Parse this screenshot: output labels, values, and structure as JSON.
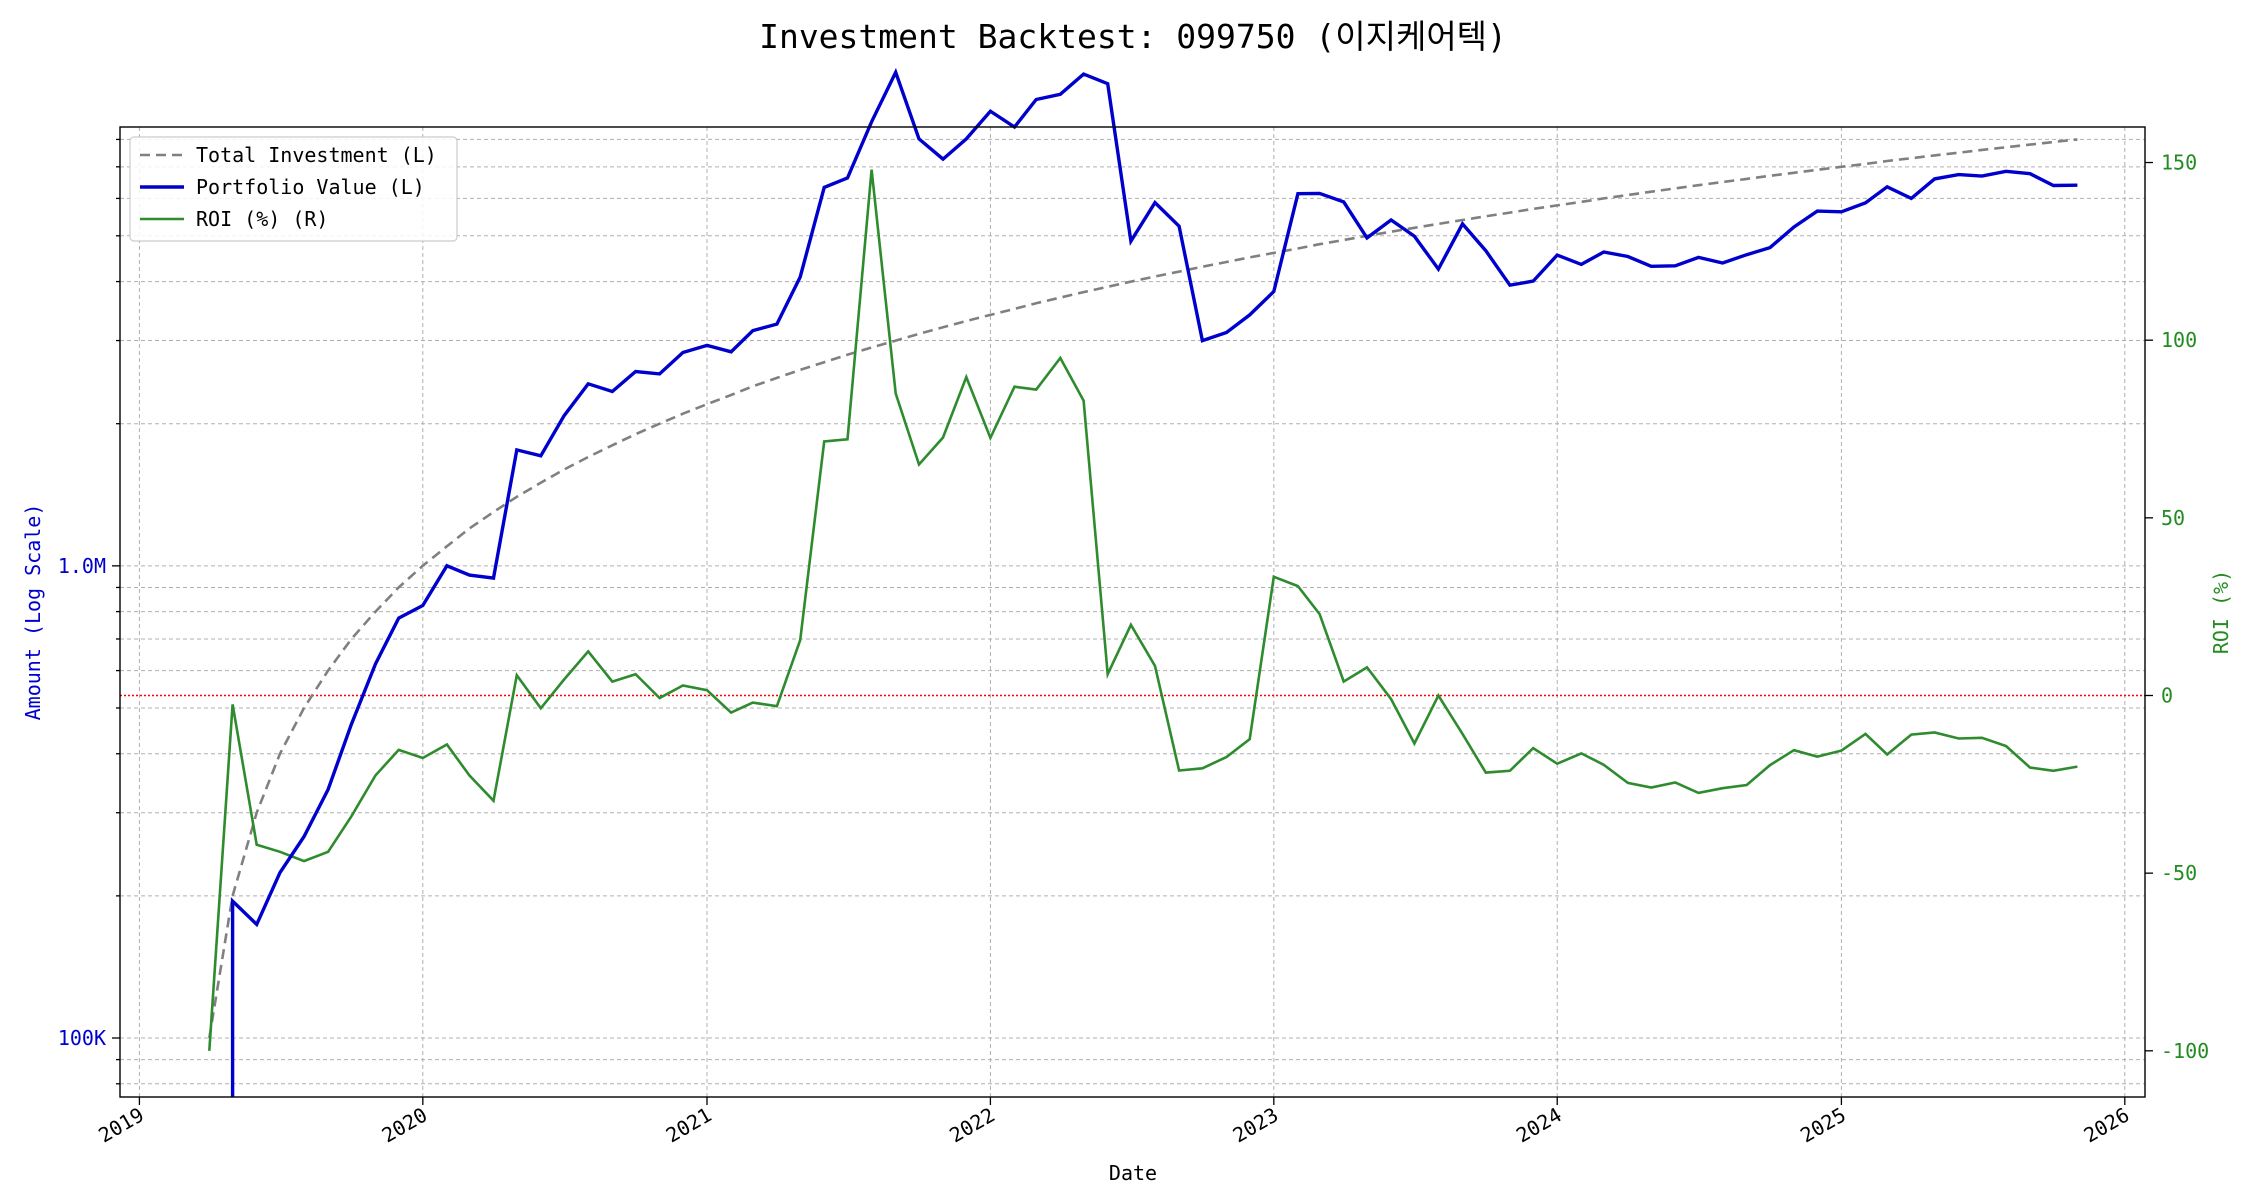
{
  "chart_data": {
    "type": "line",
    "title": "Investment Backtest: 099750 (이지케어텍)",
    "xlabel": "Date",
    "ylabel_left": "Amount (Log Scale)",
    "ylabel_right": "ROI (%)",
    "left_scale": "log",
    "left_ylim": [
      75000,
      8500000
    ],
    "right_ylim": [
      -113,
      160
    ],
    "xlim": [
      "2018-12-07",
      "2026-01-27"
    ],
    "grid": true,
    "legend_position": "upper-left",
    "zero_reference_line": {
      "axis": "right",
      "value": 0,
      "color": "#ff0000"
    },
    "x_tick_labels": [
      "2019",
      "2020",
      "2021",
      "2022",
      "2023",
      "2024",
      "2025",
      "2026"
    ],
    "x_tick_dates": [
      "2019-01-01",
      "2020-01-01",
      "2021-01-01",
      "2022-01-01",
      "2023-01-01",
      "2024-01-01",
      "2025-01-01",
      "2026-01-01"
    ],
    "left_tick_labels": [
      {
        "value": 100000,
        "label": "100K"
      },
      {
        "value": 1000000,
        "label": "1.0M"
      }
    ],
    "right_tick_labels": [
      {
        "value": 150,
        "label": "150"
      },
      {
        "value": 100,
        "label": "100"
      },
      {
        "value": 50,
        "label": "50"
      },
      {
        "value": 0,
        "label": "0"
      },
      {
        "value": -50,
        "label": "-50"
      },
      {
        "value": -100,
        "label": "-100"
      }
    ],
    "colors": {
      "total_investment": "#808080",
      "portfolio_value": "#0000cd",
      "roi": "#2e8b2e",
      "left_axis": "#0000cd",
      "right_axis": "#228b22",
      "zero_line": "#ff0000"
    },
    "x": [
      "2019-04-01",
      "2019-05-01",
      "2019-06-01",
      "2019-07-01",
      "2019-08-01",
      "2019-09-01",
      "2019-10-01",
      "2019-11-01",
      "2019-12-01",
      "2020-01-01",
      "2020-02-01",
      "2020-03-01",
      "2020-04-01",
      "2020-05-01",
      "2020-06-01",
      "2020-07-01",
      "2020-08-01",
      "2020-09-01",
      "2020-10-01",
      "2020-11-01",
      "2020-12-01",
      "2021-01-01",
      "2021-02-01",
      "2021-03-01",
      "2021-04-01",
      "2021-05-01",
      "2021-06-01",
      "2021-07-01",
      "2021-08-01",
      "2021-09-01",
      "2021-10-01",
      "2021-11-01",
      "2021-12-01",
      "2022-01-01",
      "2022-02-01",
      "2022-03-01",
      "2022-04-01",
      "2022-05-01",
      "2022-06-01",
      "2022-07-01",
      "2022-08-01",
      "2022-09-01",
      "2022-10-01",
      "2022-11-01",
      "2022-12-01",
      "2023-01-01",
      "2023-02-01",
      "2023-03-01",
      "2023-04-01",
      "2023-05-01",
      "2023-06-01",
      "2023-07-01",
      "2023-08-01",
      "2023-09-01",
      "2023-10-01",
      "2023-11-01",
      "2023-12-01",
      "2024-01-01",
      "2024-02-01",
      "2024-03-01",
      "2024-04-01",
      "2024-05-01",
      "2024-06-01",
      "2024-07-01",
      "2024-08-01",
      "2024-09-01",
      "2024-10-01",
      "2024-11-01",
      "2024-12-01",
      "2025-01-01",
      "2025-02-01",
      "2025-03-01",
      "2025-04-01",
      "2025-05-01",
      "2025-06-01",
      "2025-07-01",
      "2025-08-01",
      "2025-09-01",
      "2025-10-01",
      "2025-11-01"
    ],
    "series": [
      {
        "name": "Total Investment (L)",
        "axis": "left",
        "style": "dashed",
        "values": [
          100000,
          200000,
          300000,
          400000,
          500000,
          600000,
          700000,
          800000,
          900000,
          1000000,
          1100000,
          1200000,
          1300000,
          1400000,
          1500000,
          1600000,
          1700000,
          1800000,
          1900000,
          2000000,
          2100000,
          2200000,
          2300000,
          2400000,
          2500000,
          2600000,
          2700000,
          2800000,
          2900000,
          3000000,
          3100000,
          3200000,
          3300000,
          3400000,
          3500000,
          3600000,
          3700000,
          3800000,
          3900000,
          4000000,
          4100000,
          4200000,
          4300000,
          4400000,
          4500000,
          4600000,
          4700000,
          4800000,
          4900000,
          5000000,
          5100000,
          5200000,
          5300000,
          5400000,
          5500000,
          5600000,
          5700000,
          5800000,
          5900000,
          6000000,
          6100000,
          6200000,
          6300000,
          6400000,
          6500000,
          6600000,
          6700000,
          6800000,
          6900000,
          7000000,
          7100000,
          7200000,
          7300000,
          7400000,
          7500000,
          7600000,
          7700000,
          7800000,
          7900000,
          8000000
        ]
      },
      {
        "name": "Portfolio Value (L)",
        "axis": "left",
        "style": "solid",
        "values": [
          null,
          195000,
          174000,
          224000,
          267000,
          336000,
          462000,
          620000,
          775000,
          824000,
          1000000,
          956000,
          942000,
          1760000,
          1710000,
          2080000,
          2430000,
          2340000,
          2580000,
          2550000,
          2830000,
          2930000,
          2840000,
          3150000,
          3250000,
          4090000,
          6330000,
          6630000,
          8720000,
          11100000,
          8020000,
          7270000,
          8020000,
          9180000,
          8500000,
          9720000,
          9970000,
          11000000,
          10500000,
          4870000,
          5880000,
          5240000,
          3000000,
          3120000,
          3400000,
          3810000,
          6140000,
          6150000,
          5900000,
          4950000,
          5400000,
          4990000,
          4250000,
          5300000,
          4650000,
          3930000,
          4010000,
          4550000,
          4350000,
          4620000,
          4520000,
          4310000,
          4320000,
          4500000,
          4380000,
          4560000,
          4720000,
          5220000,
          5640000,
          5620000,
          5870000,
          6350000,
          6000000,
          6600000,
          6740000,
          6690000,
          6850000,
          6770000,
          6390000,
          6400000
        ]
      },
      {
        "name": "ROI (%) (R)",
        "axis": "right",
        "style": "solid",
        "values": [
          -100,
          -2.5,
          -42,
          -44,
          -46.6,
          -44,
          -34,
          -22.5,
          -15.3,
          -17.6,
          -13.8,
          -22.5,
          -29.6,
          5.7,
          -3.6,
          4.5,
          12.4,
          3.9,
          6.0,
          -0.7,
          2.8,
          1.5,
          -4.8,
          -2.0,
          -3.0,
          15.6,
          71.5,
          72.1,
          148,
          85,
          65,
          72.6,
          89.6,
          72.5,
          86.9,
          86.1,
          95,
          83,
          6.0,
          19.9,
          8.3,
          -21.1,
          -20.5,
          -17.3,
          -12.3,
          33.4,
          30.8,
          22.9,
          3.9,
          7.9,
          -1.0,
          -13.5,
          0.0,
          -10.8,
          -21.7,
          -21.2,
          -14.8,
          -19.2,
          -16.3,
          -19.5,
          -24.6,
          -25.9,
          -24.5,
          -27.4,
          -26.1,
          -25.2,
          -19.6,
          -15.4,
          -17.2,
          -15.5,
          -10.8,
          -16.6,
          -11.0,
          -10.4,
          -12.1,
          -11.9,
          -14.2,
          -20.3,
          -21.2,
          -20.0
        ]
      }
    ]
  }
}
